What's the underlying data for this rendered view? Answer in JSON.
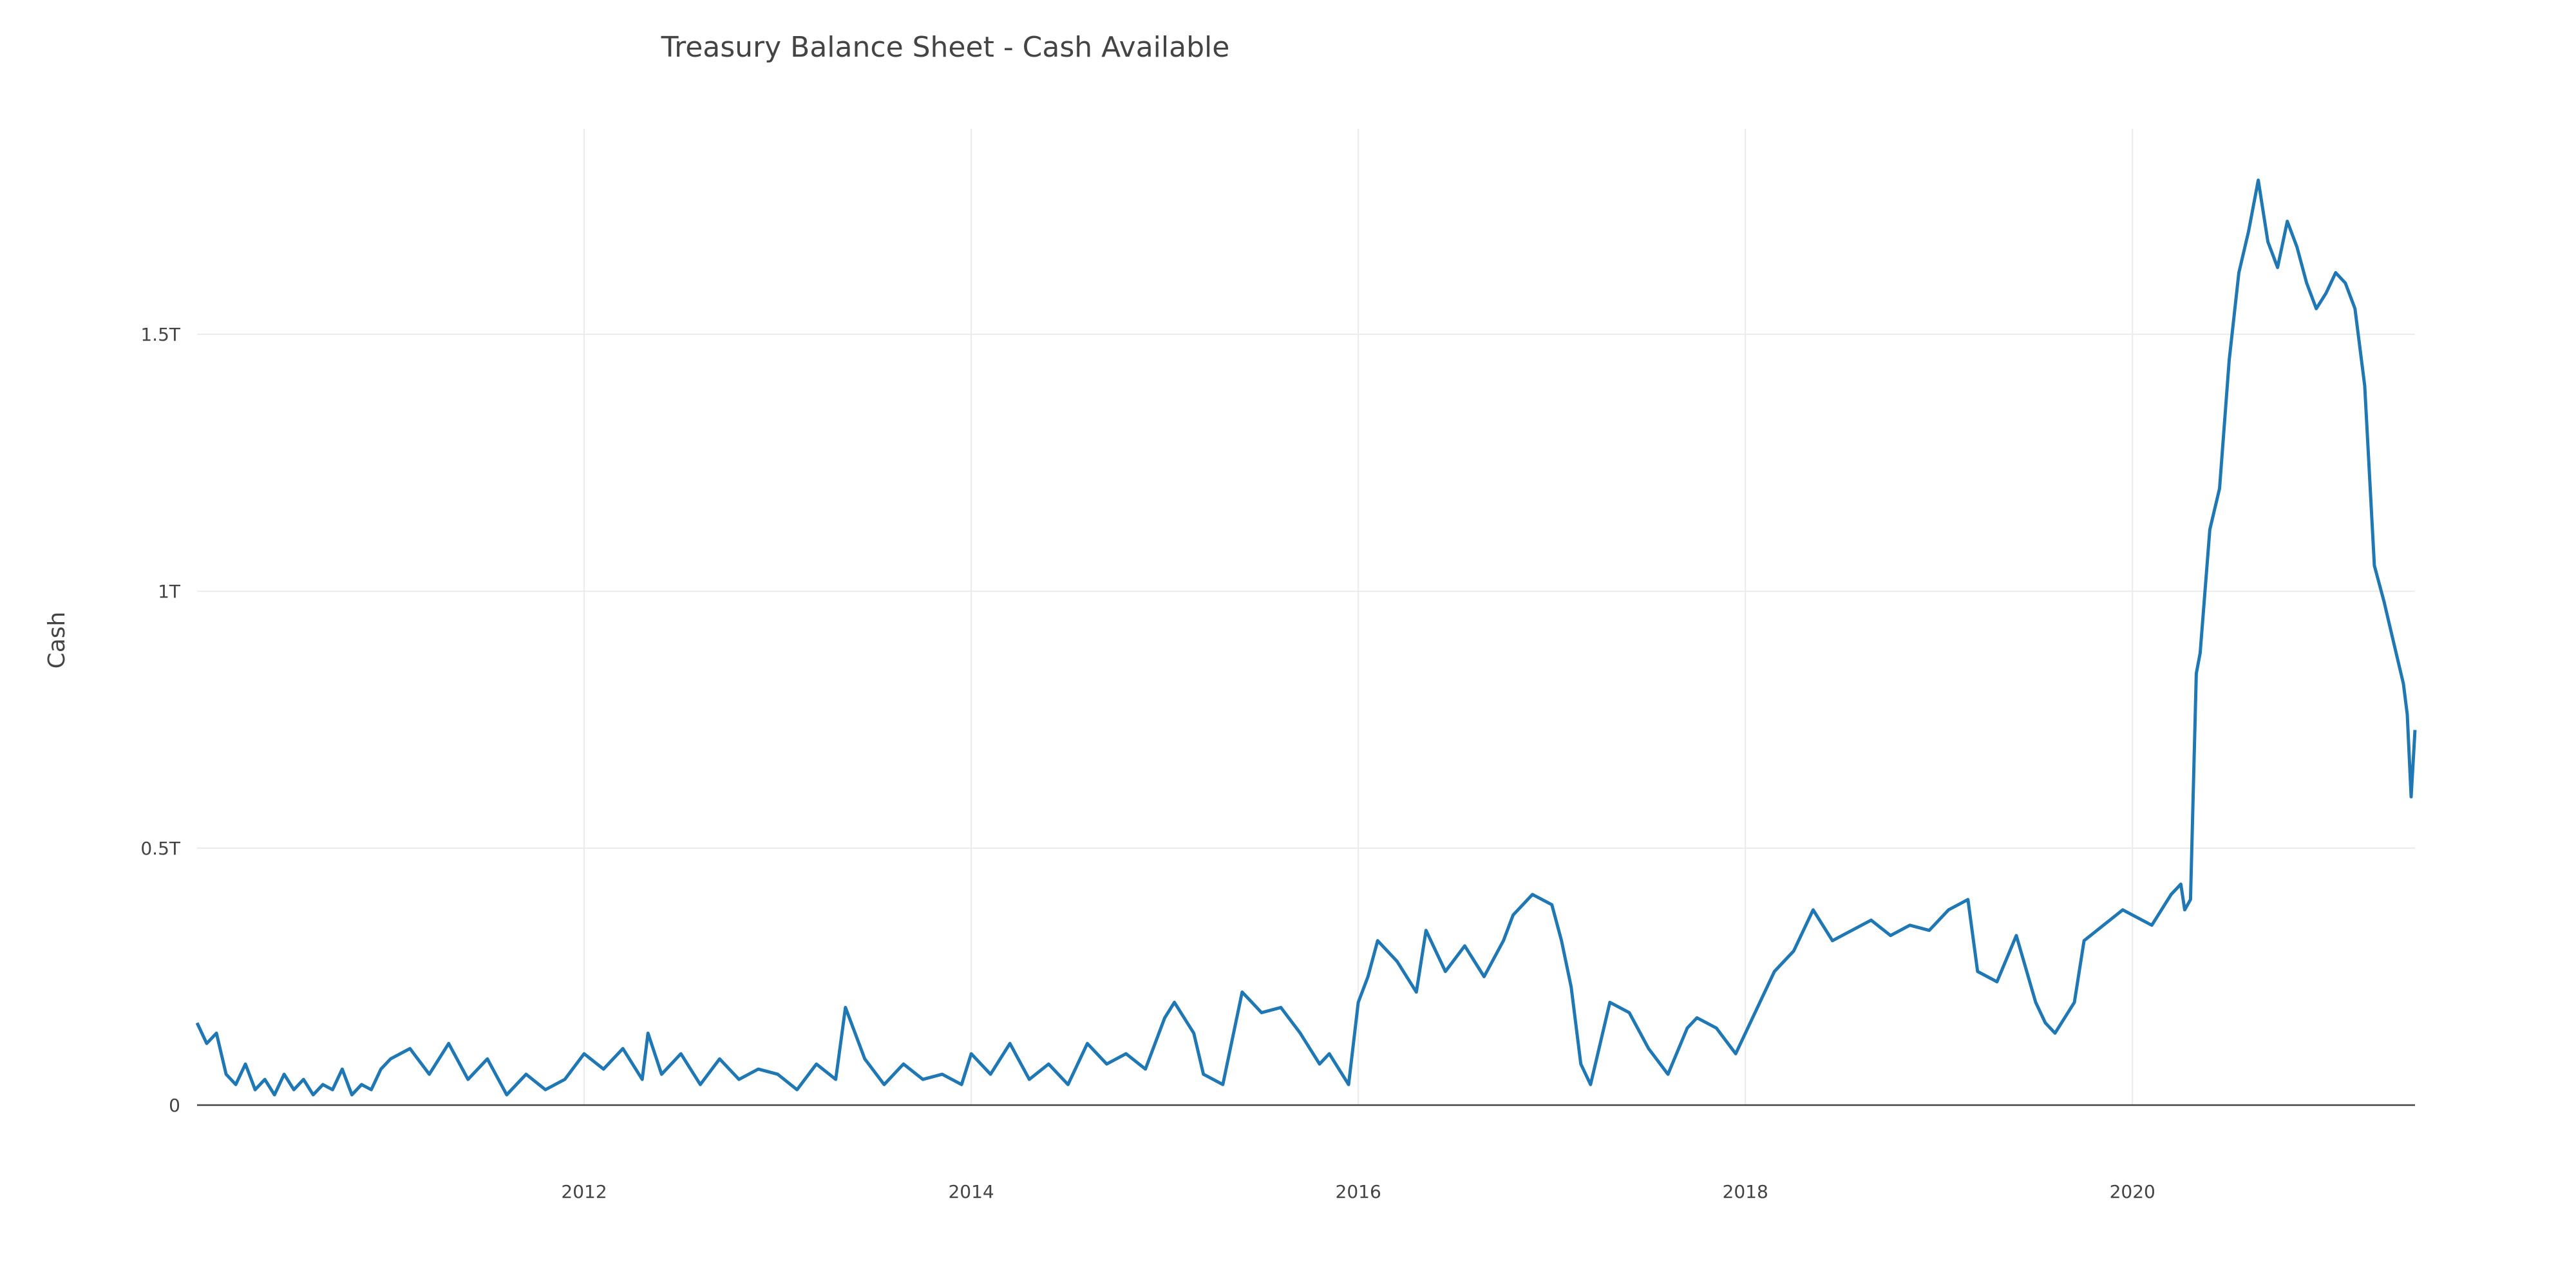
{
  "chart_data": {
    "type": "line",
    "title": "Treasury Balance Sheet - Cash Available",
    "xlabel": "",
    "ylabel": "Cash",
    "x_range": [
      2010.0,
      2021.46
    ],
    "ylim": [
      0,
      1.9
    ],
    "x_ticks": [
      {
        "value": 2012,
        "label": "2012"
      },
      {
        "value": 2014,
        "label": "2014"
      },
      {
        "value": 2016,
        "label": "2016"
      },
      {
        "value": 2018,
        "label": "2018"
      },
      {
        "value": 2020,
        "label": "2020"
      }
    ],
    "y_ticks": [
      {
        "value": 0,
        "label": "0"
      },
      {
        "value": 0.5,
        "label": "0.5T"
      },
      {
        "value": 1,
        "label": "1T"
      },
      {
        "value": 1.5,
        "label": "1.5T"
      }
    ],
    "grid": true,
    "legend": "none",
    "line_color": "#1f77b4",
    "series": [
      {
        "x": [
          2010.0,
          2010.05,
          2010.1,
          2010.15,
          2010.2,
          2010.25,
          2010.3,
          2010.35,
          2010.4,
          2010.45,
          2010.5,
          2010.55,
          2010.6,
          2010.65,
          2010.7,
          2010.75,
          2010.8,
          2010.85,
          2010.9,
          2010.95,
          2011.0,
          2011.1,
          2011.2,
          2011.3,
          2011.4,
          2011.5,
          2011.6,
          2011.7,
          2011.8,
          2011.9,
          2012.0,
          2012.1,
          2012.2,
          2012.3,
          2012.33,
          2012.4,
          2012.5,
          2012.6,
          2012.7,
          2012.8,
          2012.9,
          2013.0,
          2013.1,
          2013.2,
          2013.3,
          2013.35,
          2013.45,
          2013.55,
          2013.65,
          2013.75,
          2013.85,
          2013.95,
          2014.0,
          2014.1,
          2014.2,
          2014.3,
          2014.4,
          2014.5,
          2014.6,
          2014.7,
          2014.8,
          2014.9,
          2015.0,
          2015.05,
          2015.15,
          2015.2,
          2015.3,
          2015.4,
          2015.45,
          2015.5,
          2015.6,
          2015.7,
          2015.8,
          2015.85,
          2015.95,
          2016.0,
          2016.05,
          2016.1,
          2016.2,
          2016.3,
          2016.35,
          2016.45,
          2016.55,
          2016.65,
          2016.75,
          2016.8,
          2016.9,
          2017.0,
          2017.05,
          2017.1,
          2017.15,
          2017.2,
          2017.3,
          2017.4,
          2017.5,
          2017.6,
          2017.7,
          2017.75,
          2017.85,
          2017.95,
          2018.05,
          2018.15,
          2018.25,
          2018.35,
          2018.45,
          2018.55,
          2018.65,
          2018.75,
          2018.85,
          2018.95,
          2019.05,
          2019.15,
          2019.2,
          2019.3,
          2019.4,
          2019.5,
          2019.55,
          2019.6,
          2019.7,
          2019.75,
          2019.85,
          2019.95,
          2020.0,
          2020.1,
          2020.2,
          2020.25,
          2020.27,
          2020.3,
          2020.33,
          2020.35,
          2020.4,
          2020.45,
          2020.5,
          2020.55,
          2020.6,
          2020.65,
          2020.7,
          2020.75,
          2020.8,
          2020.85,
          2020.9,
          2020.95,
          2021.0,
          2021.05,
          2021.1,
          2021.15,
          2021.2,
          2021.25,
          2021.3,
          2021.35,
          2021.4,
          2021.42,
          2021.44,
          2021.46
        ],
        "values": [
          0.16,
          0.12,
          0.14,
          0.06,
          0.04,
          0.08,
          0.03,
          0.05,
          0.02,
          0.06,
          0.03,
          0.05,
          0.02,
          0.04,
          0.03,
          0.07,
          0.02,
          0.04,
          0.03,
          0.07,
          0.09,
          0.11,
          0.06,
          0.12,
          0.05,
          0.09,
          0.02,
          0.06,
          0.03,
          0.05,
          0.1,
          0.07,
          0.11,
          0.05,
          0.14,
          0.06,
          0.1,
          0.04,
          0.09,
          0.05,
          0.07,
          0.06,
          0.03,
          0.08,
          0.05,
          0.19,
          0.09,
          0.04,
          0.08,
          0.05,
          0.06,
          0.04,
          0.1,
          0.06,
          0.12,
          0.05,
          0.08,
          0.04,
          0.12,
          0.08,
          0.1,
          0.07,
          0.17,
          0.2,
          0.14,
          0.06,
          0.04,
          0.22,
          0.2,
          0.18,
          0.19,
          0.14,
          0.08,
          0.1,
          0.04,
          0.2,
          0.25,
          0.32,
          0.28,
          0.22,
          0.34,
          0.26,
          0.31,
          0.25,
          0.32,
          0.37,
          0.41,
          0.39,
          0.32,
          0.23,
          0.08,
          0.04,
          0.2,
          0.18,
          0.11,
          0.06,
          0.15,
          0.17,
          0.15,
          0.1,
          0.18,
          0.26,
          0.3,
          0.38,
          0.32,
          0.34,
          0.36,
          0.33,
          0.35,
          0.34,
          0.38,
          0.4,
          0.26,
          0.24,
          0.33,
          0.2,
          0.16,
          0.14,
          0.2,
          0.32,
          0.35,
          0.38,
          0.37,
          0.35,
          0.41,
          0.43,
          0.38,
          0.4,
          0.84,
          0.88,
          1.12,
          1.2,
          1.45,
          1.62,
          1.7,
          1.8,
          1.68,
          1.63,
          1.72,
          1.67,
          1.6,
          1.55,
          1.58,
          1.62,
          1.6,
          1.55,
          1.4,
          1.05,
          0.98,
          0.9,
          0.82,
          0.76,
          0.6,
          0.73
        ]
      }
    ]
  }
}
